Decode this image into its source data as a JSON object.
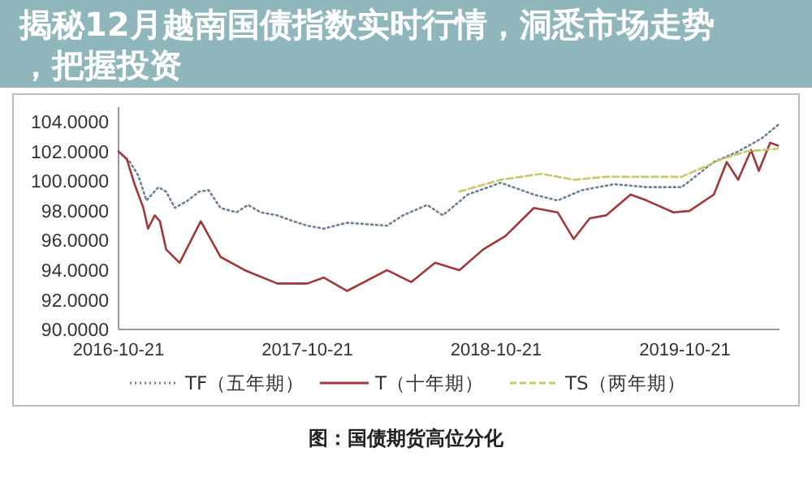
{
  "chart_data": {
    "type": "line",
    "title": "揭秘12月越南国债指数实时行情，洞悉市场走势，把握投资",
    "annotations": [
      "图：国债期货高位分化"
    ],
    "xlim": [
      "2016-10-21",
      "2020-04-21"
    ],
    "xticks": [
      {
        "value": "2016-10-21",
        "label": "2016-10-21"
      },
      {
        "value": "2017-10-21",
        "label": "2017-10-21"
      },
      {
        "value": "2018-10-21",
        "label": "2018-10-21"
      },
      {
        "value": "2019-10-21",
        "label": "2019-10-21"
      }
    ],
    "ylim": [
      90,
      105
    ],
    "yticks": [
      {
        "value": 90,
        "label": "90.0000"
      },
      {
        "value": 92,
        "label": "92.0000"
      },
      {
        "value": 94,
        "label": "94.0000"
      },
      {
        "value": 96,
        "label": "96.0000"
      },
      {
        "value": 98,
        "label": "98.0000"
      },
      {
        "value": 100,
        "label": "100.0000"
      },
      {
        "value": 102,
        "label": "102.0000"
      },
      {
        "value": 104,
        "label": "104.0000"
      }
    ],
    "grid": false,
    "legend": "bottom",
    "marker": "none",
    "series": [
      {
        "name": "TF（五年期）",
        "color": "#6b7f95",
        "line_style": "dotted",
        "x": [
          "2016-10-21",
          "2016-11-12",
          "2016-11-28",
          "2016-12-14",
          "2016-12-24",
          "2017-01-06",
          "2017-01-21",
          "2017-02-07",
          "2017-03-04",
          "2017-03-26",
          "2017-04-13",
          "2017-05-06",
          "2017-06-06",
          "2017-06-28",
          "2017-07-23",
          "2017-08-24",
          "2017-09-24",
          "2017-10-21",
          "2017-11-22",
          "2018-01-06",
          "2018-03-24",
          "2018-04-24",
          "2018-06-10",
          "2018-07-10",
          "2018-08-27",
          "2018-10-30",
          "2019-01-02",
          "2019-02-17",
          "2019-04-05",
          "2019-06-06",
          "2019-08-08",
          "2019-10-15",
          "2019-12-16",
          "2020-02-01",
          "2020-03-18",
          "2020-04-18"
        ],
        "values": [
          102.0,
          101.3,
          100.4,
          98.7,
          99.1,
          99.6,
          99.3,
          98.2,
          98.7,
          99.3,
          99.4,
          98.2,
          97.9,
          98.4,
          97.9,
          97.7,
          97.3,
          97.0,
          96.8,
          97.2,
          97.0,
          97.7,
          98.4,
          97.7,
          99.1,
          99.9,
          99.1,
          98.7,
          99.4,
          99.8,
          99.6,
          99.6,
          101.3,
          102.0,
          102.9,
          103.8
        ]
      },
      {
        "name": "T（十年期）",
        "color": "#a0383a",
        "line_style": "solid",
        "x": [
          "2016-10-21",
          "2016-11-06",
          "2016-11-12",
          "2016-11-21",
          "2016-12-08",
          "2016-12-17",
          "2016-12-30",
          "2017-01-09",
          "2017-01-21",
          "2017-02-16",
          "2017-03-29",
          "2017-05-06",
          "2017-06-22",
          "2017-08-24",
          "2017-10-21",
          "2017-11-22",
          "2018-01-06",
          "2018-03-24",
          "2018-05-10",
          "2018-06-25",
          "2018-08-11",
          "2018-09-26",
          "2018-11-08",
          "2019-01-02",
          "2019-02-17",
          "2019-03-20",
          "2019-04-20",
          "2019-05-22",
          "2019-07-08",
          "2019-08-08",
          "2019-09-29",
          "2019-10-30",
          "2019-12-16",
          "2020-01-10",
          "2020-02-01",
          "2020-02-26",
          "2020-03-12",
          "2020-04-03",
          "2020-04-18"
        ],
        "values": [
          102.0,
          101.5,
          100.8,
          99.8,
          98.2,
          96.8,
          97.7,
          97.3,
          95.4,
          94.5,
          97.3,
          94.9,
          94.0,
          93.1,
          93.1,
          93.5,
          92.6,
          94.0,
          93.2,
          94.5,
          94.0,
          95.4,
          96.3,
          98.2,
          97.9,
          96.1,
          97.5,
          97.7,
          99.1,
          98.7,
          97.9,
          98.0,
          99.1,
          101.3,
          100.1,
          102.1,
          100.7,
          102.6,
          102.4
        ]
      },
      {
        "name": "TS（两年期）",
        "color": "#c8c86a",
        "line_style": "dashed",
        "x": [
          "2018-08-11",
          "2018-10-30",
          "2019-01-17",
          "2019-03-20",
          "2019-05-22",
          "2019-07-23",
          "2019-10-15",
          "2020-01-01",
          "2020-02-16",
          "2020-04-18"
        ],
        "values": [
          99.3,
          100.1,
          100.5,
          100.1,
          100.3,
          100.3,
          100.3,
          101.5,
          102.0,
          102.2
        ]
      }
    ]
  }
}
